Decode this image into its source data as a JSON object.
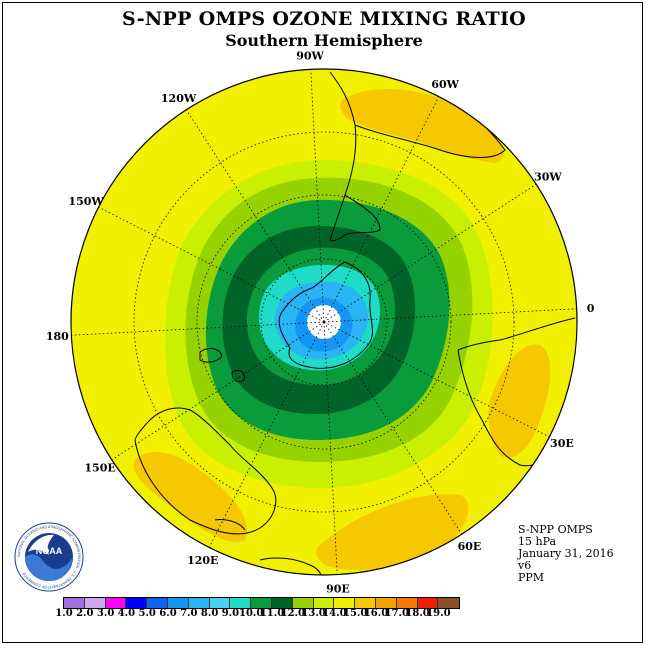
{
  "title": "S-NPP OMPS OZONE MIXING RATIO",
  "subtitle": "Southern Hemisphere",
  "longitude_labels": [
    {
      "text": "90W",
      "lon": -90
    },
    {
      "text": "60W",
      "lon": -60
    },
    {
      "text": "30W",
      "lon": -30
    },
    {
      "text": "0",
      "lon": 0
    },
    {
      "text": "30E",
      "lon": 30
    },
    {
      "text": "60E",
      "lon": 60
    },
    {
      "text": "90E",
      "lon": 90
    },
    {
      "text": "120E",
      "lon": 120
    },
    {
      "text": "150E",
      "lon": 150
    },
    {
      "text": "180",
      "lon": 180
    },
    {
      "text": "150W",
      "lon": -150
    },
    {
      "text": "120W",
      "lon": -120
    }
  ],
  "info": {
    "product": "S-NPP OMPS",
    "level": "15 hPa",
    "date": "January 31, 2016",
    "version": "v6",
    "units": "PPM"
  },
  "logo": {
    "text": "NOAA",
    "ring_text": "NATIONAL OCEANIC AND ATMOSPHERIC ADMINISTRATION · U.S. DEPARTMENT OF COMMERCE"
  },
  "colorbar": {
    "labels": [
      "1.0",
      "2.0",
      "3.0",
      "4.0",
      "5.0",
      "6.0",
      "7.0",
      "8.0",
      "9.0",
      "10.0",
      "11.0",
      "12.0",
      "13.0",
      "14.0",
      "15.0",
      "16.0",
      "17.0",
      "18.0",
      "19.0"
    ],
    "colors": [
      "#a070e0",
      "#d0a8f0",
      "#ff00ff",
      "#0000ff",
      "#0a64f0",
      "#1496f5",
      "#28b4f5",
      "#46d2f0",
      "#1edcc8",
      "#0a9b3c",
      "#006428",
      "#96d200",
      "#c8f000",
      "#f0f000",
      "#f5c800",
      "#f5a000",
      "#f57800",
      "#f01e00",
      "#8c5028"
    ]
  },
  "map_colors": {
    "level_14": "#f0f000",
    "level_15": "#f5c800",
    "level_13": "#c8f000",
    "level_12": "#96d200",
    "level_11": "#46a028",
    "level_10": "#006428",
    "level_9": "#0a9b3c",
    "level_8": "#1edcc8",
    "level_7": "#28b4f5",
    "level_6": "#1496f5"
  }
}
